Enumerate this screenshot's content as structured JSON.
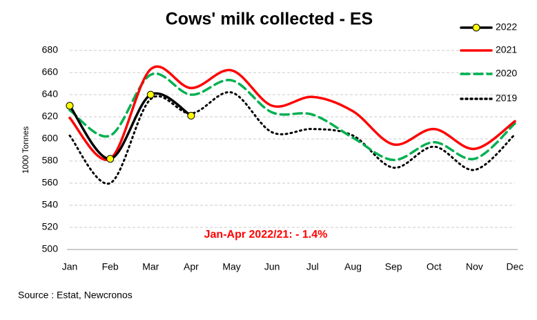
{
  "chart_data": {
    "type": "line",
    "title": "Cows' milk collected - ES",
    "ylabel": "1000 Tonnes",
    "annotation": "Jan-Apr 2022/21: - 1.4%",
    "source": "Source : Estat, Newcronos",
    "categories": [
      "Jan",
      "Feb",
      "Mar",
      "Apr",
      "May",
      "Jun",
      "Jul",
      "Aug",
      "Sep",
      "Oct",
      "Nov",
      "Dec"
    ],
    "ylim": [
      500,
      680
    ],
    "yticks": [
      500,
      520,
      540,
      560,
      580,
      600,
      620,
      640,
      660,
      680
    ],
    "grid": true,
    "legend": "top-right",
    "series": [
      {
        "name": "2022",
        "color": "#000000",
        "line_style": "solid",
        "marker": "circle",
        "marker_color": "#ffff00",
        "values": [
          630,
          582,
          640,
          621,
          null,
          null,
          null,
          null,
          null,
          null,
          null,
          null
        ]
      },
      {
        "name": "2021",
        "color": "#ff0000",
        "line_style": "solid",
        "values": [
          619,
          582,
          663,
          646,
          662,
          630,
          638,
          625,
          595,
          609,
          591,
          616
        ]
      },
      {
        "name": "2020",
        "color": "#00b050",
        "line_style": "dashed",
        "values": [
          626,
          603,
          658,
          640,
          653,
          624,
          622,
          601,
          581,
          597,
          582,
          614
        ]
      },
      {
        "name": "2019",
        "color": "#000000",
        "line_style": "dotted",
        "values": [
          603,
          560,
          636,
          623,
          642,
          606,
          609,
          603,
          574,
          593,
          572,
          604
        ]
      }
    ]
  }
}
